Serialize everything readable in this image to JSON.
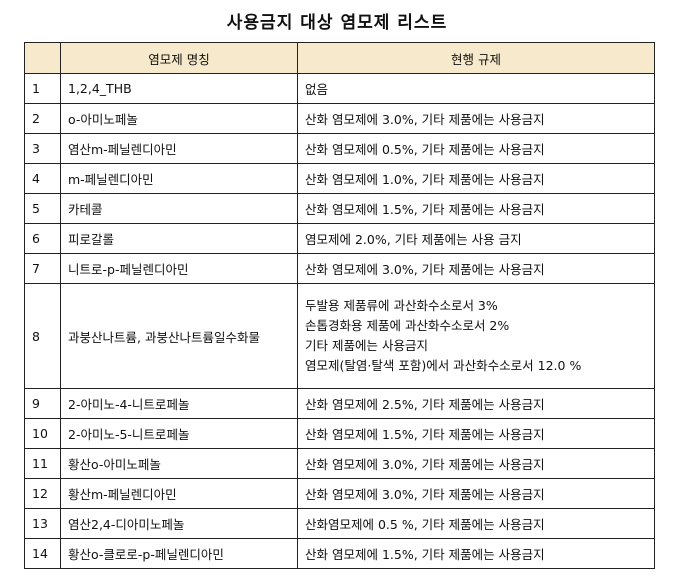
{
  "title": "사용금지 대상 염모제 리스트",
  "header": {
    "col_num": "",
    "col_name": "염모제 명칭",
    "col_reg": "현행 규제"
  },
  "colors": {
    "header_bg": "#f7e9cc",
    "border": "#222222"
  },
  "rows": [
    {
      "num": "1",
      "name": "1,2,4_THB",
      "reg": [
        "없음"
      ]
    },
    {
      "num": "2",
      "name": "o-아미노페놀",
      "reg": [
        "산화 염모제에 3.0%, 기타 제품에는 사용금지"
      ]
    },
    {
      "num": "3",
      "name": "염산m-페닐렌디아민",
      "reg": [
        "산화 염모제에 0.5%, 기타 제품에는 사용금지"
      ]
    },
    {
      "num": "4",
      "name": "m-페닐렌디아민",
      "reg": [
        "산화 염모제에 1.0%, 기타 제품에는 사용금지"
      ]
    },
    {
      "num": "5",
      "name": "카테콜",
      "reg": [
        "산화 염모제에 1.5%, 기타 제품에는 사용금지"
      ]
    },
    {
      "num": "6",
      "name": "피로갈롤",
      "reg": [
        "염모제에 2.0%, 기타 제품에는 사용 금지"
      ]
    },
    {
      "num": "7",
      "name": "니트로-p-페닐렌디아민",
      "reg": [
        "산화 염모제에 3.0%, 기타 제품에는 사용금지"
      ]
    },
    {
      "num": "8",
      "name": "과붕산나트륨, 과붕산나트륨일수화물",
      "reg": [
        "두발용 제품류에 과산화수소로서 3%",
        "손톱경화용 제품에 과산화수소로서 2%",
        "기타 제품에는 사용금지",
        "염모제(탈염·탈색 포함)에서 과산화수소로서 12.0 %"
      ]
    },
    {
      "num": "9",
      "name": "2-아미노-4-니트로페놀",
      "reg": [
        "산화 염모제에 2.5%, 기타 제품에는 사용금지"
      ]
    },
    {
      "num": "10",
      "name": "2-아미노-5-니트로페놀",
      "reg": [
        "산화 염모제에 1.5%, 기타 제품에는 사용금지"
      ]
    },
    {
      "num": "11",
      "name": "황산o-아미노페놀",
      "reg": [
        "산화 염모제에 3.0%, 기타 제품에는 사용금지"
      ]
    },
    {
      "num": "12",
      "name": "황산m-페닐렌디아민",
      "reg": [
        "산화 염모제에 3.0%, 기타 제품에는 사용금지"
      ]
    },
    {
      "num": "13",
      "name": "염산2,4-디아미노페놀",
      "reg": [
        "산화염모제에 0.5 %, 기타 제품에는 사용금지"
      ]
    },
    {
      "num": "14",
      "name": "황산o-클로로-p-페닐렌디아민",
      "reg": [
        "산화 염모제에 1.5%, 기타 제품에는 사용금지"
      ]
    }
  ]
}
